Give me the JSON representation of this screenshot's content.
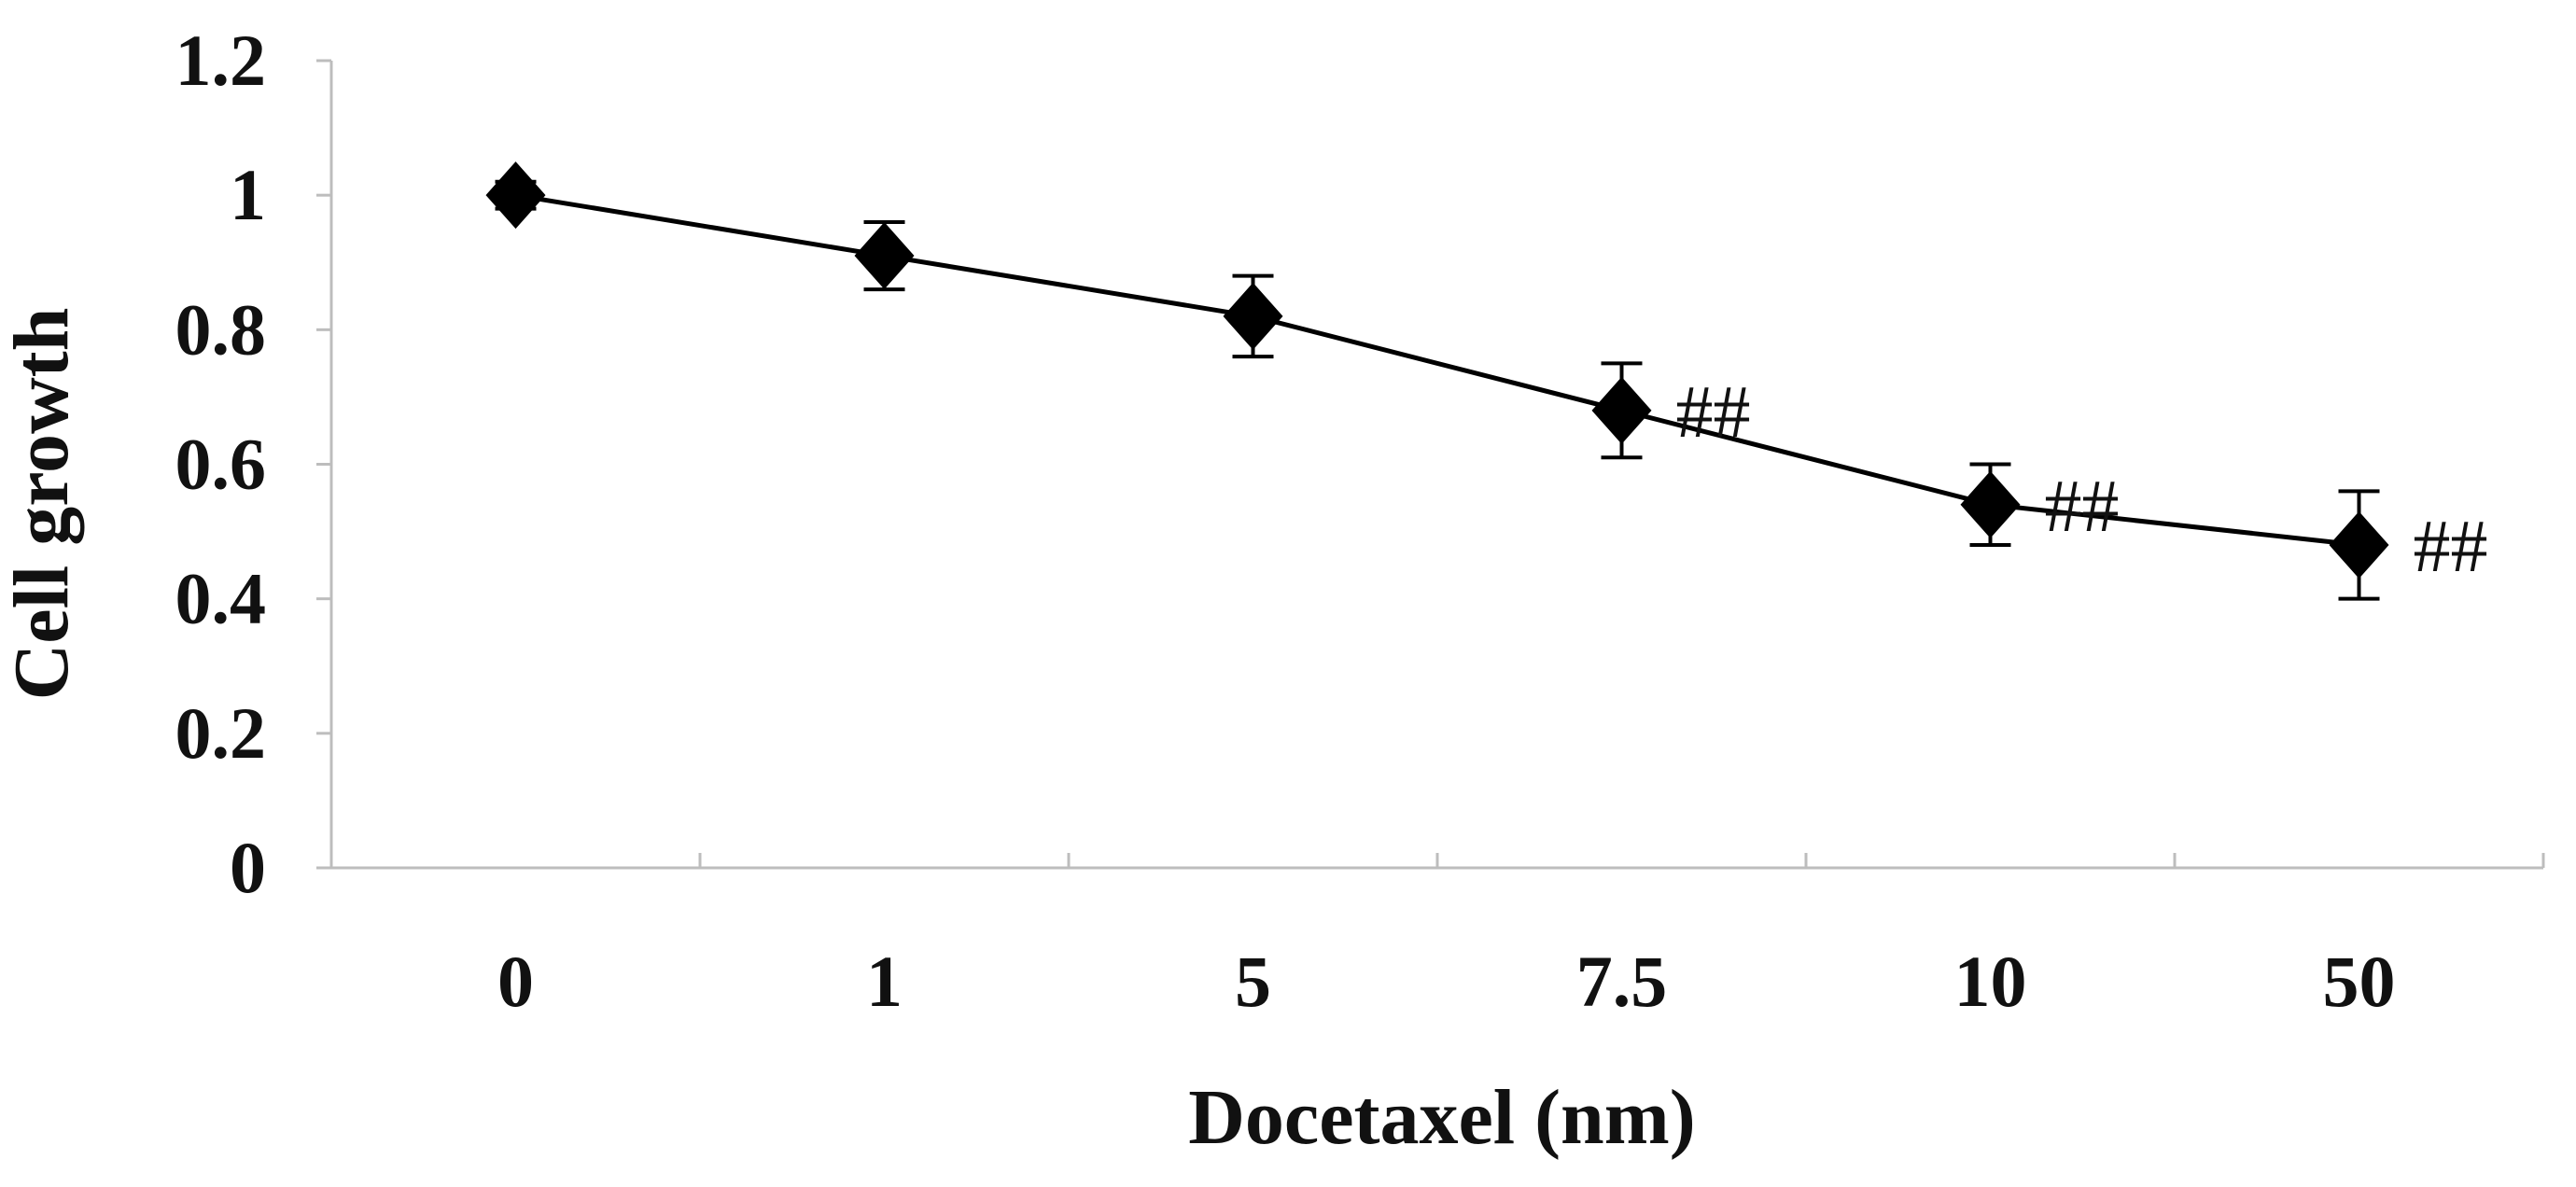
{
  "chart_data": {
    "type": "line",
    "title": "",
    "xlabel": "Docetaxel (nm)",
    "ylabel": "Cell growth",
    "categories": [
      "0",
      "1",
      "5",
      "7.5",
      "10",
      "50"
    ],
    "y_ticks": [
      "0",
      "0.2",
      "0.4",
      "0.6",
      "0.8",
      "1",
      "1.2"
    ],
    "ylim": [
      0,
      1.2
    ],
    "grid": false,
    "legend": "none",
    "marker": "diamond",
    "line_color": "#000000",
    "series": [
      {
        "values": [
          1.0,
          0.91,
          0.82,
          0.68,
          0.54,
          0.48
        ],
        "error": [
          0.02,
          0.05,
          0.06,
          0.07,
          0.06,
          0.08
        ]
      }
    ],
    "annotations": [
      {
        "category": "7.5",
        "text": "##"
      },
      {
        "category": "10",
        "text": "##"
      },
      {
        "category": "50",
        "text": "##"
      }
    ]
  }
}
